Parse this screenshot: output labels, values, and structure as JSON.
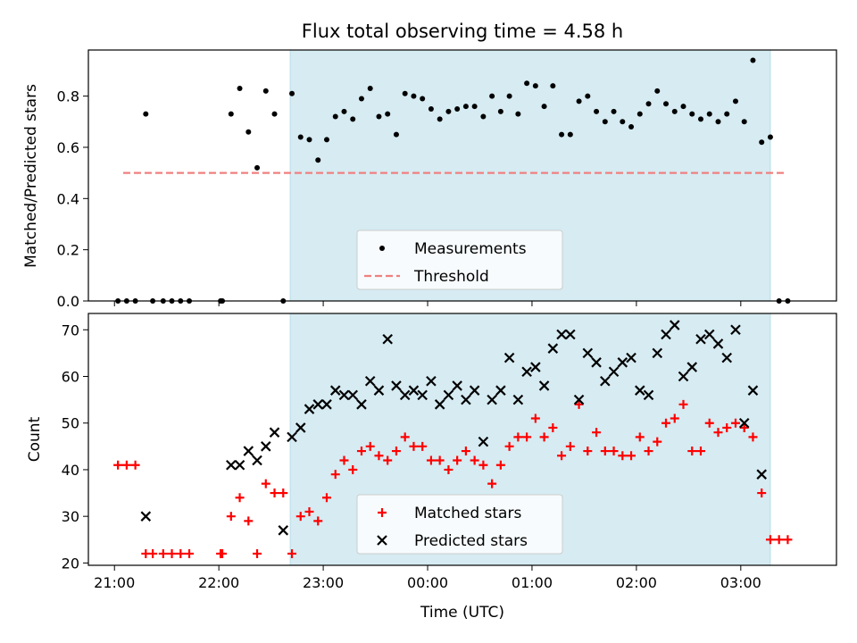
{
  "chart_data": [
    {
      "type": "scatter",
      "title": "Flux total observing time = 4.58 h",
      "xlabel": "",
      "ylabel": "Matched/Predicted stars",
      "xlim": [
        "20:45",
        "03:55"
      ],
      "ylim": [
        0,
        0.98
      ],
      "yticks": [
        "0.0",
        "0.2",
        "0.4",
        "0.6",
        "0.8"
      ],
      "grid": false,
      "legend_position": "lower-center",
      "shaded_interval": [
        "22:41",
        "03:17"
      ],
      "shade_color": "#add8e6",
      "series": [
        {
          "name": "Measurements",
          "marker": "dot",
          "color": "#000000",
          "points": [
            [
              "21:02",
              0
            ],
            [
              "21:07",
              0
            ],
            [
              "21:12",
              0
            ],
            [
              "21:18",
              0.73
            ],
            [
              "21:22",
              0
            ],
            [
              "21:28",
              0
            ],
            [
              "21:33",
              0
            ],
            [
              "21:38",
              0
            ],
            [
              "21:43",
              0
            ],
            [
              "22:01",
              0
            ],
            [
              "22:02",
              0
            ],
            [
              "22:07",
              0.73
            ],
            [
              "22:12",
              0.83
            ],
            [
              "22:17",
              0.66
            ],
            [
              "22:22",
              0.52
            ],
            [
              "22:27",
              0.82
            ],
            [
              "22:32",
              0.73
            ],
            [
              "22:37",
              0
            ],
            [
              "22:42",
              0.81
            ],
            [
              "22:47",
              0.64
            ],
            [
              "22:52",
              0.63
            ],
            [
              "22:57",
              0.55
            ],
            [
              "23:02",
              0.63
            ],
            [
              "23:07",
              0.72
            ],
            [
              "23:12",
              0.74
            ],
            [
              "23:17",
              0.71
            ],
            [
              "23:22",
              0.79
            ],
            [
              "23:27",
              0.83
            ],
            [
              "23:32",
              0.72
            ],
            [
              "23:37",
              0.73
            ],
            [
              "23:42",
              0.65
            ],
            [
              "23:47",
              0.81
            ],
            [
              "23:52",
              0.8
            ],
            [
              "23:57",
              0.79
            ],
            [
              "00:02",
              0.75
            ],
            [
              "00:07",
              0.71
            ],
            [
              "00:12",
              0.74
            ],
            [
              "00:17",
              0.75
            ],
            [
              "00:22",
              0.76
            ],
            [
              "00:27",
              0.76
            ],
            [
              "00:32",
              0.72
            ],
            [
              "00:37",
              0.8
            ],
            [
              "00:42",
              0.74
            ],
            [
              "00:47",
              0.8
            ],
            [
              "00:52",
              0.73
            ],
            [
              "00:57",
              0.85
            ],
            [
              "01:02",
              0.84
            ],
            [
              "01:07",
              0.76
            ],
            [
              "01:12",
              0.84
            ],
            [
              "01:17",
              0.65
            ],
            [
              "01:22",
              0.65
            ],
            [
              "01:27",
              0.78
            ],
            [
              "01:32",
              0.8
            ],
            [
              "01:37",
              0.74
            ],
            [
              "01:42",
              0.7
            ],
            [
              "01:47",
              0.74
            ],
            [
              "01:52",
              0.7
            ],
            [
              "01:57",
              0.68
            ],
            [
              "02:02",
              0.73
            ],
            [
              "02:07",
              0.77
            ],
            [
              "02:12",
              0.82
            ],
            [
              "02:17",
              0.77
            ],
            [
              "02:22",
              0.74
            ],
            [
              "02:27",
              0.76
            ],
            [
              "02:32",
              0.73
            ],
            [
              "02:37",
              0.71
            ],
            [
              "02:42",
              0.73
            ],
            [
              "02:47",
              0.7
            ],
            [
              "02:52",
              0.73
            ],
            [
              "02:57",
              0.78
            ],
            [
              "03:02",
              0.7
            ],
            [
              "03:07",
              0.94
            ],
            [
              "03:12",
              0.62
            ],
            [
              "03:17",
              0.64
            ],
            [
              "03:22",
              0
            ],
            [
              "03:27",
              0
            ]
          ]
        },
        {
          "name": "Threshold",
          "marker": "dashed-line",
          "color": "#f08080",
          "points": [
            [
              "21:05",
              0.5
            ],
            [
              "03:25",
              0.5
            ]
          ]
        }
      ]
    },
    {
      "type": "scatter",
      "title": "",
      "xlabel": "Time (UTC)",
      "ylabel": "Count",
      "xlim": [
        "20:45",
        "03:55"
      ],
      "ylim": [
        19.5,
        73.5
      ],
      "yticks": [
        "20",
        "30",
        "40",
        "50",
        "60",
        "70"
      ],
      "xticks": [
        "21:00",
        "22:00",
        "23:00",
        "00:00",
        "01:00",
        "02:00",
        "03:00"
      ],
      "grid": false,
      "legend_position": "lower-center",
      "shaded_interval": [
        "22:41",
        "03:17"
      ],
      "shade_color": "#add8e6",
      "series": [
        {
          "name": "Matched stars",
          "marker": "plus",
          "color": "#ff0000",
          "points": [
            [
              "21:02",
              41
            ],
            [
              "21:07",
              41
            ],
            [
              "21:12",
              41
            ],
            [
              "21:18",
              22
            ],
            [
              "21:22",
              22
            ],
            [
              "21:28",
              22
            ],
            [
              "21:33",
              22
            ],
            [
              "21:38",
              22
            ],
            [
              "21:43",
              22
            ],
            [
              "22:01",
              22
            ],
            [
              "22:02",
              22
            ],
            [
              "22:07",
              30
            ],
            [
              "22:12",
              34
            ],
            [
              "22:17",
              29
            ],
            [
              "22:22",
              22
            ],
            [
              "22:27",
              37
            ],
            [
              "22:32",
              35
            ],
            [
              "22:37",
              35
            ],
            [
              "22:42",
              22
            ],
            [
              "22:47",
              30
            ],
            [
              "22:52",
              31
            ],
            [
              "22:57",
              29
            ],
            [
              "23:02",
              34
            ],
            [
              "23:07",
              39
            ],
            [
              "23:12",
              42
            ],
            [
              "23:17",
              40
            ],
            [
              "23:22",
              44
            ],
            [
              "23:27",
              45
            ],
            [
              "23:32",
              43
            ],
            [
              "23:37",
              42
            ],
            [
              "23:42",
              44
            ],
            [
              "23:47",
              47
            ],
            [
              "23:52",
              45
            ],
            [
              "23:57",
              45
            ],
            [
              "00:02",
              42
            ],
            [
              "00:07",
              42
            ],
            [
              "00:12",
              40
            ],
            [
              "00:17",
              42
            ],
            [
              "00:22",
              44
            ],
            [
              "00:27",
              42
            ],
            [
              "00:32",
              41
            ],
            [
              "00:37",
              37
            ],
            [
              "00:42",
              41
            ],
            [
              "00:47",
              45
            ],
            [
              "00:52",
              47
            ],
            [
              "00:57",
              47
            ],
            [
              "01:02",
              51
            ],
            [
              "01:07",
              47
            ],
            [
              "01:12",
              49
            ],
            [
              "01:17",
              43
            ],
            [
              "01:22",
              45
            ],
            [
              "01:27",
              54
            ],
            [
              "01:32",
              44
            ],
            [
              "01:37",
              48
            ],
            [
              "01:42",
              44
            ],
            [
              "01:47",
              44
            ],
            [
              "01:52",
              43
            ],
            [
              "01:57",
              43
            ],
            [
              "02:02",
              47
            ],
            [
              "02:07",
              44
            ],
            [
              "02:12",
              46
            ],
            [
              "02:17",
              50
            ],
            [
              "02:22",
              51
            ],
            [
              "02:27",
              54
            ],
            [
              "02:32",
              44
            ],
            [
              "02:37",
              44
            ],
            [
              "02:42",
              50
            ],
            [
              "02:47",
              48
            ],
            [
              "02:52",
              49
            ],
            [
              "02:57",
              50
            ],
            [
              "03:02",
              49
            ],
            [
              "03:07",
              47
            ],
            [
              "03:12",
              35
            ],
            [
              "03:17",
              25
            ],
            [
              "03:22",
              25
            ],
            [
              "03:27",
              25
            ]
          ]
        },
        {
          "name": "Predicted stars",
          "marker": "x",
          "color": "#000000",
          "points": [
            [
              "21:18",
              30
            ],
            [
              "22:07",
              41
            ],
            [
              "22:12",
              41
            ],
            [
              "22:17",
              44
            ],
            [
              "22:22",
              42
            ],
            [
              "22:27",
              45
            ],
            [
              "22:32",
              48
            ],
            [
              "22:37",
              27
            ],
            [
              "22:42",
              47
            ],
            [
              "22:47",
              49
            ],
            [
              "22:52",
              53
            ],
            [
              "22:57",
              54
            ],
            [
              "23:02",
              54
            ],
            [
              "23:07",
              57
            ],
            [
              "23:12",
              56
            ],
            [
              "23:17",
              56
            ],
            [
              "23:22",
              54
            ],
            [
              "23:27",
              59
            ],
            [
              "23:32",
              57
            ],
            [
              "23:37",
              68
            ],
            [
              "23:42",
              58
            ],
            [
              "23:47",
              56
            ],
            [
              "23:52",
              57
            ],
            [
              "23:57",
              56
            ],
            [
              "00:02",
              59
            ],
            [
              "00:07",
              54
            ],
            [
              "00:12",
              56
            ],
            [
              "00:17",
              58
            ],
            [
              "00:22",
              55
            ],
            [
              "00:27",
              57
            ],
            [
              "00:32",
              46
            ],
            [
              "00:37",
              55
            ],
            [
              "00:42",
              57
            ],
            [
              "00:47",
              64
            ],
            [
              "00:52",
              55
            ],
            [
              "00:57",
              61
            ],
            [
              "01:02",
              62
            ],
            [
              "01:07",
              58
            ],
            [
              "01:12",
              66
            ],
            [
              "01:17",
              69
            ],
            [
              "01:22",
              69
            ],
            [
              "01:27",
              55
            ],
            [
              "01:32",
              65
            ],
            [
              "01:37",
              63
            ],
            [
              "01:42",
              59
            ],
            [
              "01:47",
              61
            ],
            [
              "01:52",
              63
            ],
            [
              "01:57",
              64
            ],
            [
              "02:02",
              57
            ],
            [
              "02:07",
              56
            ],
            [
              "02:12",
              65
            ],
            [
              "02:17",
              69
            ],
            [
              "02:22",
              71
            ],
            [
              "02:27",
              60
            ],
            [
              "02:32",
              62
            ],
            [
              "02:37",
              68
            ],
            [
              "02:42",
              69
            ],
            [
              "02:47",
              67
            ],
            [
              "02:52",
              64
            ],
            [
              "02:57",
              70
            ],
            [
              "03:02",
              50
            ],
            [
              "03:07",
              57
            ],
            [
              "03:12",
              39
            ]
          ]
        }
      ]
    }
  ]
}
